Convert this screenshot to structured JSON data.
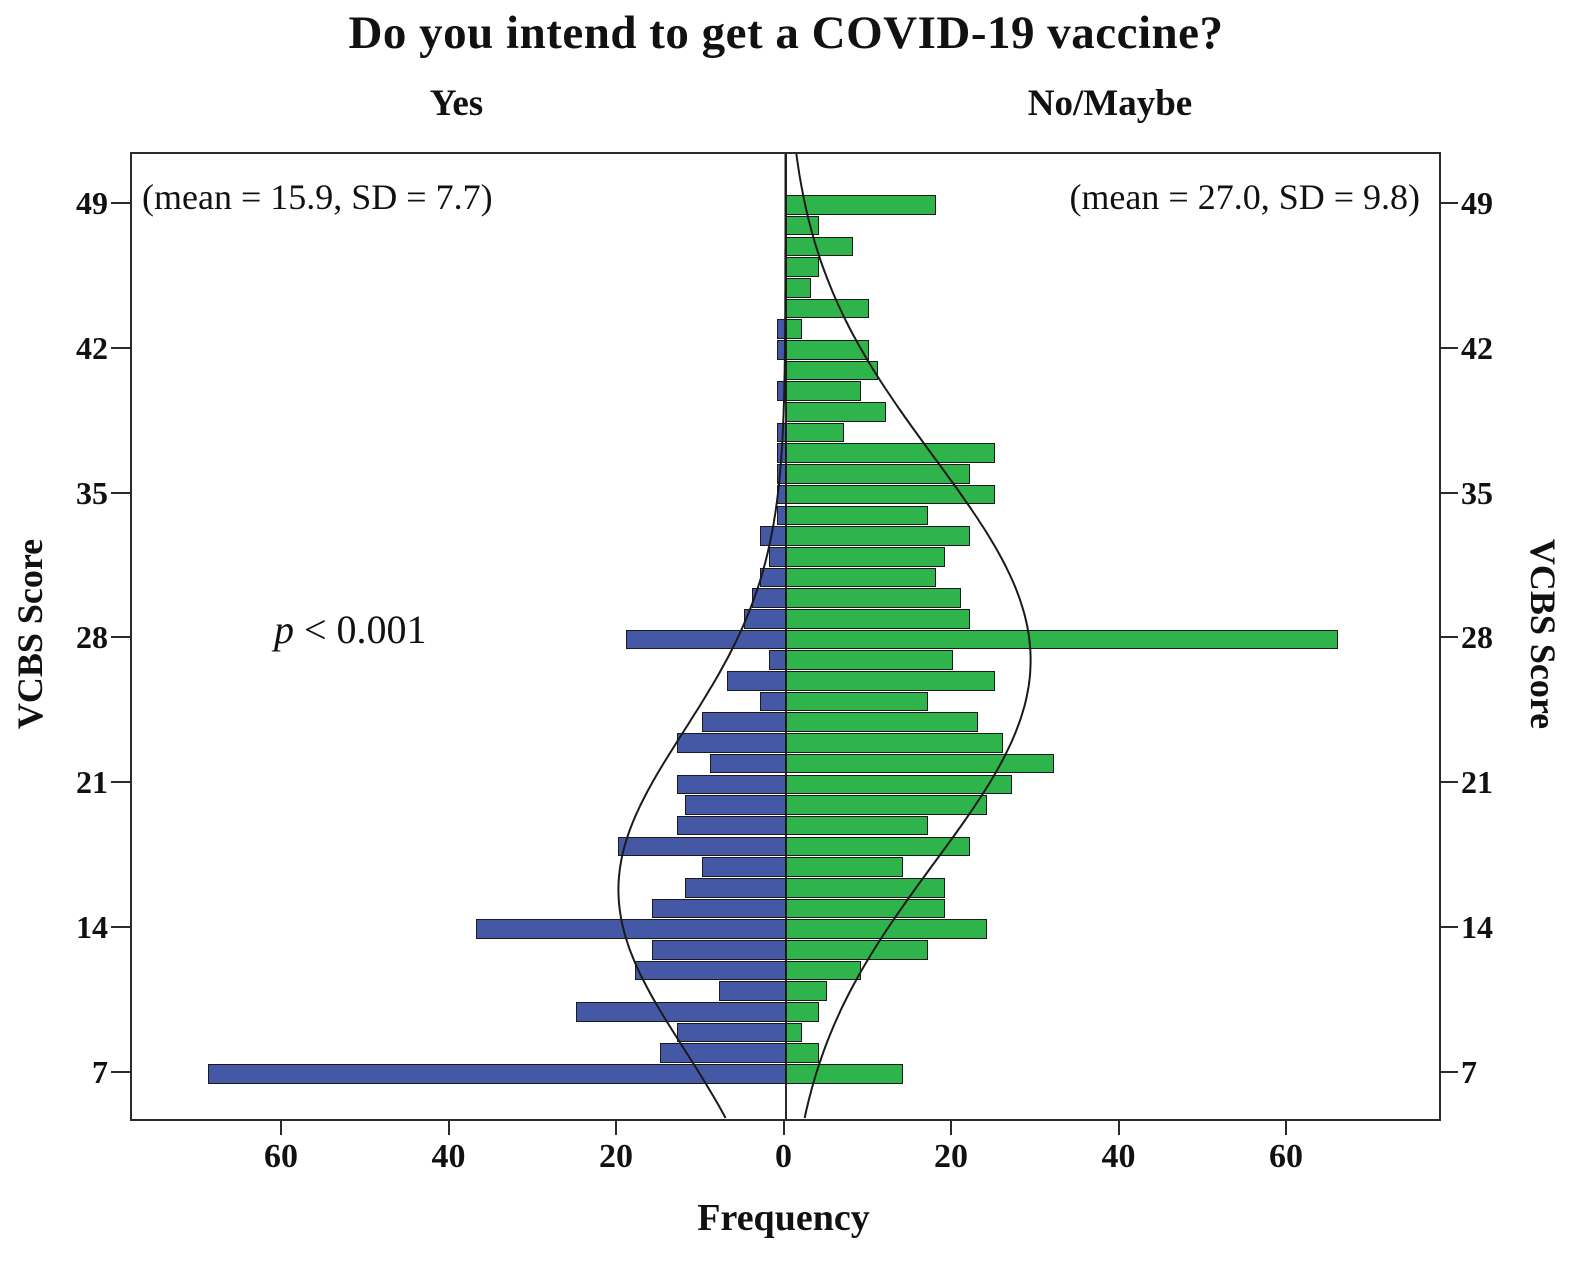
{
  "title": "Do you intend to get a COVID-19 vaccine?",
  "groups": {
    "yes": {
      "label": "Yes",
      "stats": "(mean = 15.9, SD = 7.7)"
    },
    "no": {
      "label": "No/Maybe",
      "stats": "(mean = 27.0, SD = 9.8)"
    }
  },
  "annotation": {
    "p_italic": "p",
    "p_rest": " < 0.001"
  },
  "axes": {
    "x_label": "Frequency",
    "y_label_left": "VCBS Score",
    "y_label_right": "VCBS Score",
    "y_ticks": [
      49,
      42,
      35,
      28,
      21,
      14,
      7
    ],
    "x_ticks": [
      60,
      40,
      20,
      0,
      20,
      40,
      60
    ]
  },
  "chart_data": {
    "type": "bar",
    "subtype": "back-to-back population pyramid histogram",
    "title": "Do you intend to get a COVID-19 vaccine?",
    "xlabel": "Frequency",
    "ylabel": "VCBS Score",
    "x_axis": {
      "ticks_each_side": [
        0,
        20,
        40,
        60
      ],
      "max_each_side": 78
    },
    "y_axis": {
      "ticks": [
        49,
        42,
        35,
        28,
        21,
        14,
        7
      ],
      "range": [
        5.5,
        51.5
      ]
    },
    "normal_curve_overlay": true,
    "scores": [
      7,
      8,
      9,
      10,
      11,
      12,
      13,
      14,
      15,
      16,
      17,
      18,
      19,
      20,
      21,
      22,
      23,
      24,
      25,
      26,
      27,
      28,
      29,
      30,
      31,
      32,
      33,
      34,
      35,
      36,
      37,
      38,
      39,
      40,
      41,
      42,
      43,
      44,
      45,
      46,
      47,
      48,
      49
    ],
    "series": [
      {
        "name": "Yes",
        "side": "left",
        "color": "#4458A5",
        "mean": 15.9,
        "sd": 7.7,
        "values": [
          69,
          15,
          13,
          25,
          8,
          18,
          16,
          37,
          16,
          12,
          10,
          20,
          13,
          12,
          13,
          9,
          13,
          10,
          3,
          7,
          2,
          19,
          5,
          4,
          3,
          2,
          3,
          1,
          1,
          1,
          1,
          1,
          0,
          1,
          0,
          1,
          1,
          0,
          0,
          0,
          0,
          0,
          0
        ]
      },
      {
        "name": "No/Maybe",
        "side": "right",
        "color": "#2FB44B",
        "mean": 27.0,
        "sd": 9.8,
        "values": [
          14,
          4,
          2,
          4,
          5,
          9,
          17,
          24,
          19,
          19,
          14,
          22,
          17,
          24,
          27,
          32,
          26,
          23,
          17,
          25,
          20,
          66,
          22,
          21,
          18,
          19,
          22,
          17,
          25,
          22,
          25,
          7,
          12,
          9,
          11,
          10,
          2,
          10,
          3,
          4,
          8,
          4,
          18
        ]
      }
    ],
    "annotations": {
      "p_value": "p < 0.001",
      "yes_stats": "(mean = 15.9, SD = 7.7)",
      "no_stats": "(mean = 27.0, SD = 9.8)"
    },
    "curve_color": "#1a1a1a",
    "bar_border_color": "#1b1b1b"
  }
}
